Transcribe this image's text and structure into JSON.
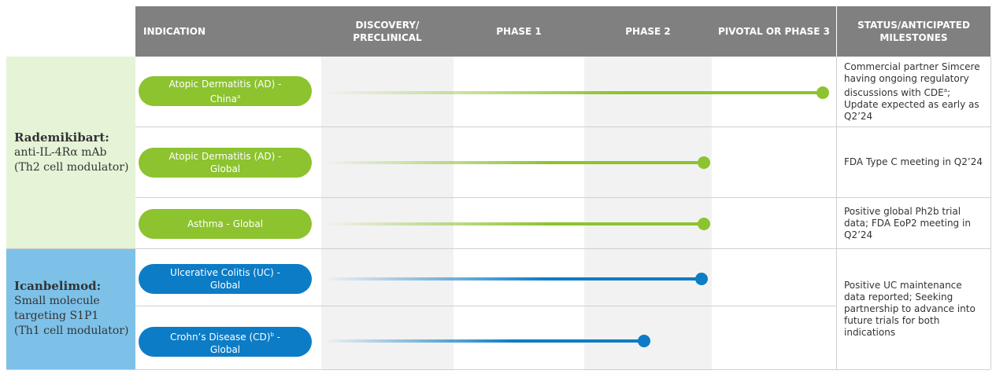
{
  "header": {
    "indication": "INDICATION",
    "phases": [
      "DISCOVERY/ PRECLINICAL",
      "PHASE 1",
      "PHASE 2",
      "PIVOTAL OR PHASE 3"
    ],
    "status": "STATUS/ANTICIPATED MILESTONES"
  },
  "groups": [
    {
      "name": "Rademikibart:",
      "lines": [
        "anti-IL-4Rα mAb",
        "(Th2 cell modulator)"
      ]
    },
    {
      "name": "Icanbelimod:",
      "lines": [
        "Small molecule",
        "targeting S1P1",
        "(Th1 cell modulator)"
      ]
    }
  ],
  "programs": [
    {
      "text": "Atopic Dermatitis (AD) - China",
      "sup": "a"
    },
    {
      "text": "Atopic Dermatitis (AD) - Global"
    },
    {
      "text": "Asthma - Global"
    },
    {
      "text": "Ulcerative Colitis (UC) - Global"
    },
    {
      "text": "Crohn’s Disease (CD)",
      "sup": "b",
      "after": " - Global"
    }
  ],
  "statuses": [
    {
      "text": "Commercial partner Simcere having ongoing regulatory discussions with CDE",
      "sup": "a",
      "after": "; Update expected as early as Q2’24"
    },
    {
      "text": "FDA Type C meeting in Q2’24"
    },
    {
      "text": "Positive global Ph2b trial data; FDA EoP2 meeting in Q2’24"
    },
    {
      "text": "Positive UC maintenance data reported; Seeking partnership to advance into future trials for both indications"
    }
  ]
}
